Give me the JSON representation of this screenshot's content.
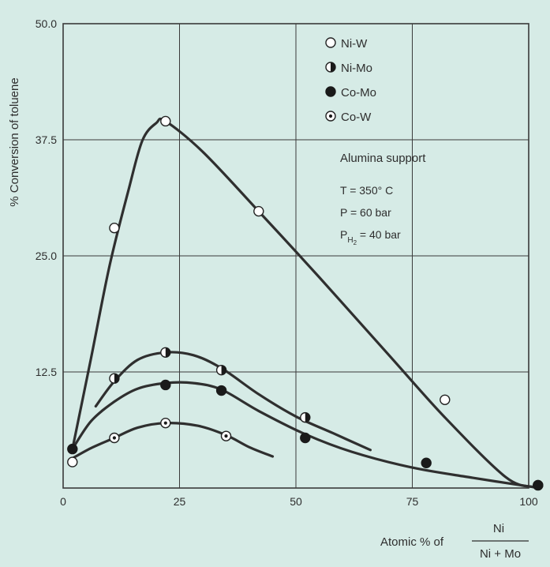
{
  "chart_data": {
    "type": "scatter",
    "xlabel": "Atomic % of",
    "xlabel_fraction": {
      "numerator": "Ni",
      "denominator": "Ni + Mo"
    },
    "ylabel": "% Conversion of toluene",
    "xlim": [
      0,
      100
    ],
    "ylim": [
      0,
      50
    ],
    "x_ticks": [
      "0",
      "25",
      "50",
      "75",
      "100"
    ],
    "y_ticks": [
      "12.5",
      "25.0",
      "37.5",
      "50.0"
    ],
    "grid": true,
    "legend_position": "top-right",
    "series": [
      {
        "name": "Ni-W",
        "marker": "open-circle",
        "points": [
          [
            2,
            2.8
          ],
          [
            11,
            28
          ],
          [
            22,
            39.5
          ],
          [
            42,
            29.8
          ],
          [
            82,
            9.5
          ],
          [
            102,
            0.3
          ]
        ],
        "curve": [
          [
            2,
            4.2
          ],
          [
            6,
            14
          ],
          [
            10,
            24
          ],
          [
            14,
            32
          ],
          [
            17,
            37.4
          ],
          [
            20,
            39.3
          ],
          [
            22,
            39.5
          ],
          [
            30,
            36.2
          ],
          [
            42,
            29.8
          ],
          [
            55,
            22.7
          ],
          [
            70,
            14.3
          ],
          [
            82,
            7.6
          ],
          [
            95,
            1.2
          ],
          [
            101,
            0.1
          ]
        ]
      },
      {
        "name": "Ni-Mo",
        "marker": "half-filled-circle",
        "points": [
          [
            11,
            11.8
          ],
          [
            22,
            14.6
          ],
          [
            34,
            12.7
          ],
          [
            52,
            7.6
          ]
        ],
        "curve": [
          [
            7,
            8.8
          ],
          [
            11,
            11.5
          ],
          [
            16,
            13.8
          ],
          [
            22,
            14.6
          ],
          [
            28,
            14.3
          ],
          [
            34,
            12.9
          ],
          [
            42,
            10.1
          ],
          [
            50,
            7.7
          ],
          [
            58,
            5.9
          ],
          [
            66,
            4.1
          ]
        ]
      },
      {
        "name": "Co-Mo",
        "marker": "filled-circle",
        "points": [
          [
            2,
            4.2
          ],
          [
            22,
            11.1
          ],
          [
            34,
            10.5
          ],
          [
            52,
            5.4
          ],
          [
            78,
            2.7
          ],
          [
            102,
            0.3
          ]
        ],
        "curve": [
          [
            2,
            4.2
          ],
          [
            6,
            7.2
          ],
          [
            11,
            9.3
          ],
          [
            16,
            10.7
          ],
          [
            22,
            11.3
          ],
          [
            28,
            11.3
          ],
          [
            34,
            10.6
          ],
          [
            42,
            8.3
          ],
          [
            52,
            5.8
          ],
          [
            62,
            3.9
          ],
          [
            75,
            2.2
          ],
          [
            88,
            1.1
          ],
          [
            101,
            0.1
          ]
        ]
      },
      {
        "name": "Co-W",
        "marker": "dotted-circle",
        "points": [
          [
            11,
            5.4
          ],
          [
            22,
            7.0
          ],
          [
            35,
            5.6
          ]
        ],
        "curve": [
          [
            2,
            3.2
          ],
          [
            6,
            4.3
          ],
          [
            11,
            5.4
          ],
          [
            16,
            6.5
          ],
          [
            22,
            7.0
          ],
          [
            29,
            6.7
          ],
          [
            35,
            5.7
          ],
          [
            40,
            4.4
          ],
          [
            45,
            3.4
          ]
        ]
      }
    ],
    "conditions": {
      "support": "Alumina support",
      "temperature": "T = 350° C",
      "pressure": "P = 60 bar",
      "h2_pressure_prefix": "P",
      "h2_pressure_sub": "H",
      "h2_pressure_subsub": "2",
      "h2_pressure_value": " = 40 bar"
    }
  }
}
